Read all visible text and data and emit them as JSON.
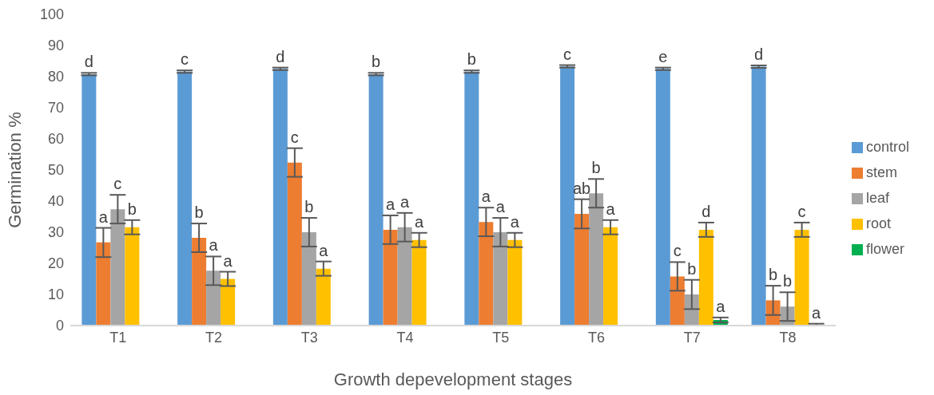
{
  "chart_data": {
    "type": "bar",
    "xlabel": "Growth depevelopment stages",
    "ylabel": "Germination %",
    "categories": [
      "T1",
      "T2",
      "T3",
      "T4",
      "T5",
      "T6",
      "T7",
      "T8"
    ],
    "ylim": [
      0,
      100
    ],
    "yticks": [
      0,
      10,
      20,
      30,
      40,
      50,
      60,
      70,
      80,
      90,
      100
    ],
    "grid": false,
    "legend": "right",
    "series": [
      {
        "name": "control",
        "color": "#5b9bd5",
        "values": [
          80.8,
          81.6,
          82.5,
          80.8,
          81.6,
          83.3,
          82.5,
          83.2
        ],
        "errors": [
          0.4,
          0.4,
          0.4,
          0.4,
          0.4,
          0.4,
          0.4,
          0.4
        ],
        "value_labels": [
          "d",
          "c",
          "d",
          "b",
          "b",
          "c",
          "e",
          "d"
        ]
      },
      {
        "name": "stem",
        "color": "#ed7d31",
        "values": [
          26.7,
          28.2,
          52.4,
          30.8,
          33.3,
          35.9,
          15.8,
          8.1
        ],
        "errors": [
          4.7,
          4.6,
          4.6,
          4.6,
          4.6,
          4.7,
          4.6,
          4.7
        ],
        "value_labels": [
          "a",
          "b",
          "c",
          "a",
          "a",
          "ab",
          "c",
          "b"
        ]
      },
      {
        "name": "leaf",
        "color": "#a5a5a5",
        "values": [
          37.4,
          17.6,
          30.0,
          31.6,
          30.0,
          42.5,
          10.0,
          6.1
        ],
        "errors": [
          4.6,
          4.6,
          4.6,
          4.6,
          4.6,
          4.6,
          4.7,
          4.6
        ],
        "value_labels": [
          "c",
          "a",
          "b",
          "a",
          "a",
          "b",
          "b",
          "b"
        ]
      },
      {
        "name": "root",
        "color": "#ffc000",
        "values": [
          31.6,
          15.0,
          18.3,
          27.5,
          27.5,
          31.6,
          30.8,
          30.8
        ],
        "errors": [
          2.3,
          2.3,
          2.3,
          2.3,
          2.3,
          2.3,
          2.3,
          2.3
        ],
        "value_labels": [
          "b",
          "a",
          "a",
          "a",
          "a",
          "a",
          "d",
          "c"
        ]
      },
      {
        "name": "flower",
        "color": "#00b050",
        "values": [
          null,
          null,
          null,
          null,
          null,
          null,
          1.8,
          0.2
        ],
        "errors": [
          null,
          null,
          null,
          null,
          null,
          null,
          0.8,
          [
            0.2,
            0.4
          ]
        ],
        "value_labels": [
          null,
          null,
          null,
          null,
          null,
          null,
          "a",
          "a"
        ]
      }
    ]
  }
}
